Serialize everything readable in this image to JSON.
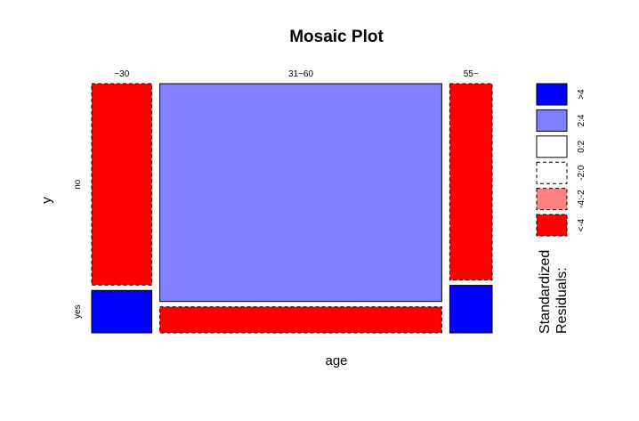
{
  "chart_data": {
    "type": "mosaic",
    "title": "Mosaic Plot",
    "xlabel": "age",
    "ylabel": "y",
    "x_categories": [
      "~30",
      "31~60",
      "55~"
    ],
    "y_categories": [
      "no",
      "yes"
    ],
    "column_widths": [
      0.125,
      0.586,
      0.088
    ],
    "column_shares": [
      {
        "no": 0.826,
        "yes": 0.174
      },
      {
        "no": 0.893,
        "yes": 0.107
      },
      {
        "no": 0.805,
        "yes": 0.195
      }
    ],
    "cells": [
      {
        "x": "~30",
        "y": "no",
        "residual_class": "<-4"
      },
      {
        "x": "~30",
        "y": "yes",
        "residual_class": ">4"
      },
      {
        "x": "31~60",
        "y": "no",
        "residual_class": "2:4"
      },
      {
        "x": "31~60",
        "y": "yes",
        "residual_class": "<-4"
      },
      {
        "x": "55~",
        "y": "no",
        "residual_class": "<-4"
      },
      {
        "x": "55~",
        "y": "yes",
        "residual_class": ">4"
      }
    ],
    "legend": {
      "title_lines": [
        "Standardized",
        "Residuals:"
      ],
      "entries": [
        {
          "label": ">4",
          "fill": "#0000ff",
          "dashed": false
        },
        {
          "label": "2:4",
          "fill": "#8080ff",
          "dashed": false
        },
        {
          "label": "0:2",
          "fill": "#ffffff",
          "dashed": false
        },
        {
          "label": "-2:0",
          "fill": "#ffffff",
          "dashed": true
        },
        {
          "label": "-4:-2",
          "fill": "#ff8080",
          "dashed": true
        },
        {
          "label": "<-4",
          "fill": "#ff0000",
          "dashed": true
        }
      ],
      "placement": "right"
    }
  }
}
